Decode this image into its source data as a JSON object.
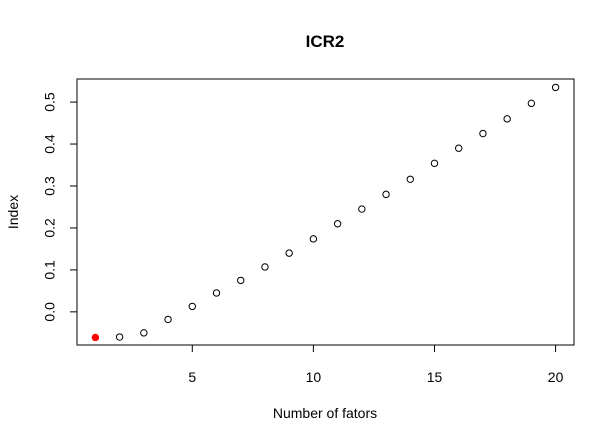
{
  "chart_data": {
    "type": "scatter",
    "title": "ICR2",
    "xlabel": "Number of fators",
    "ylabel": "Index",
    "xlim": [
      0.24,
      20.76
    ],
    "ylim": [
      -0.079,
      0.555
    ],
    "xticks": [
      5,
      10,
      15,
      20
    ],
    "yticks": [
      0.0,
      0.1,
      0.2,
      0.3,
      0.4,
      0.5
    ],
    "xtick_labels": [
      "5",
      "10",
      "15",
      "20"
    ],
    "ytick_labels": [
      "0.0",
      "0.1",
      "0.2",
      "0.3",
      "0.4",
      "0.5"
    ],
    "grid": false,
    "legend": "none",
    "series": [
      {
        "x": [
          1,
          2,
          3,
          4,
          5,
          6,
          7,
          8,
          9,
          10,
          11,
          12,
          13,
          14,
          15,
          16,
          17,
          18,
          19,
          20
        ],
        "y": [
          -0.061,
          -0.06,
          -0.05,
          -0.018,
          0.013,
          0.045,
          0.075,
          0.107,
          0.14,
          0.174,
          0.21,
          0.245,
          0.28,
          0.316,
          0.354,
          0.39,
          0.425,
          0.46,
          0.497,
          0.535
        ],
        "highlight_index": 0,
        "marker": "open-circle",
        "color": "#000000",
        "highlight_color": "#ff0000"
      }
    ]
  }
}
